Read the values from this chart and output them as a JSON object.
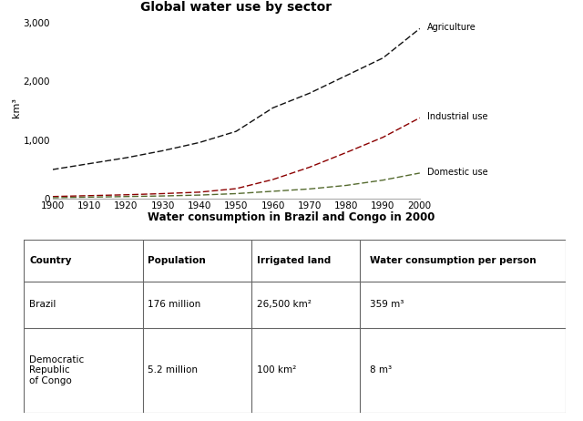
{
  "title_chart": "Global water use by sector",
  "title_table": "Water consumption in Brazil and Congo in 2000",
  "years": [
    1900,
    1910,
    1920,
    1930,
    1940,
    1950,
    1960,
    1970,
    1980,
    1990,
    2000
  ],
  "agriculture": [
    500,
    600,
    700,
    820,
    960,
    1150,
    1550,
    1800,
    2100,
    2400,
    2900
  ],
  "industrial": [
    40,
    55,
    70,
    90,
    115,
    175,
    330,
    540,
    790,
    1050,
    1380
  ],
  "domestic": [
    20,
    30,
    40,
    50,
    65,
    90,
    130,
    170,
    230,
    320,
    440
  ],
  "agri_color": "#111111",
  "indus_color": "#8B0000",
  "domestic_color": "#556B2F",
  "ylabel": "km³",
  "yticks": [
    0,
    1000,
    2000,
    3000
  ],
  "ytick_labels": [
    "0",
    "1,000",
    "2,000",
    "3,000"
  ],
  "xticks": [
    1900,
    1910,
    1920,
    1930,
    1940,
    1950,
    1960,
    1970,
    1980,
    1990,
    2000
  ],
  "agri_label": "Agriculture",
  "indus_label": "Industrial use",
  "domestic_label": "Domestic use",
  "table_headers": [
    "Country",
    "Population",
    "Irrigated land",
    "Water consumption per person"
  ],
  "table_row1": [
    "Brazil",
    "176 million",
    "26,500 km²",
    "359 m³"
  ],
  "table_row2": [
    "Democratic\nRepublic\nof Congo",
    "5.2 million",
    "100 km²",
    "8 m³"
  ],
  "header_bg": "#c8c8c8",
  "row_bg": "#ffffff",
  "table_border_color": "#666666",
  "bg_color": "#ffffff"
}
